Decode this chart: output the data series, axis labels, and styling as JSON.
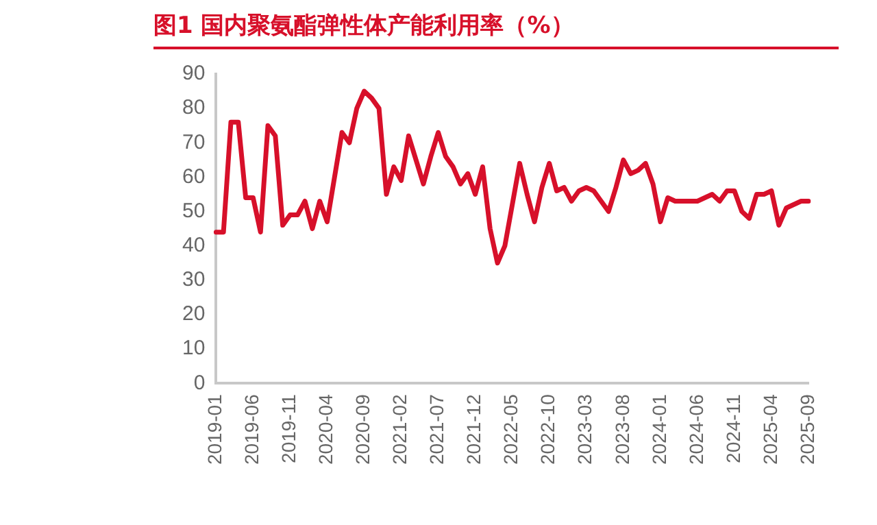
{
  "chart_data": {
    "type": "line",
    "title": "图1  国内聚氨酯弹性体产能利用率（%）",
    "categories": [
      "2019-01",
      null,
      null,
      null,
      null,
      "2019-06",
      null,
      null,
      null,
      null,
      "2019-11",
      null,
      null,
      null,
      null,
      "2020-04",
      null,
      null,
      null,
      null,
      "2020-09",
      null,
      null,
      null,
      null,
      "2021-02",
      null,
      null,
      null,
      null,
      "2021-07",
      null,
      null,
      null,
      null,
      "2021-12",
      null,
      null,
      null,
      null,
      "2022-05",
      null,
      null,
      null,
      null,
      "2022-10",
      null,
      null,
      null,
      null,
      "2023-03",
      null,
      null,
      null,
      null,
      "2023-08",
      null,
      null,
      null,
      null,
      "2024-01",
      null,
      null,
      null,
      null,
      "2024-06",
      null,
      null,
      null,
      null,
      "2024-11",
      null,
      null,
      null,
      null,
      "2025-04",
      null,
      null,
      null,
      null,
      "2025-09"
    ],
    "series": [
      {
        "color": "#d7102a",
        "values": [
          44,
          44,
          76,
          76,
          54,
          54,
          44,
          75,
          72,
          46,
          49,
          49,
          53,
          45,
          53,
          47,
          60,
          73,
          70,
          80,
          85,
          83,
          80,
          55,
          63,
          59,
          72,
          65,
          58,
          66,
          73,
          66,
          63,
          58,
          61,
          55,
          63,
          45,
          35,
          40,
          52,
          64,
          55,
          47,
          57,
          64,
          56,
          57,
          53,
          56,
          57,
          56,
          53,
          50,
          57,
          65,
          61,
          62,
          64,
          58,
          47,
          54,
          53,
          53,
          53,
          53,
          54,
          55,
          53,
          56,
          56,
          50,
          48,
          55,
          55,
          56,
          46,
          51,
          52,
          53,
          53
        ]
      }
    ],
    "ylim": [
      0,
      90
    ],
    "yticks": [
      0,
      10,
      20,
      30,
      40,
      50,
      60,
      70,
      80,
      90
    ],
    "grid": false,
    "legend": false,
    "marker": "none",
    "line_style": "solid"
  }
}
